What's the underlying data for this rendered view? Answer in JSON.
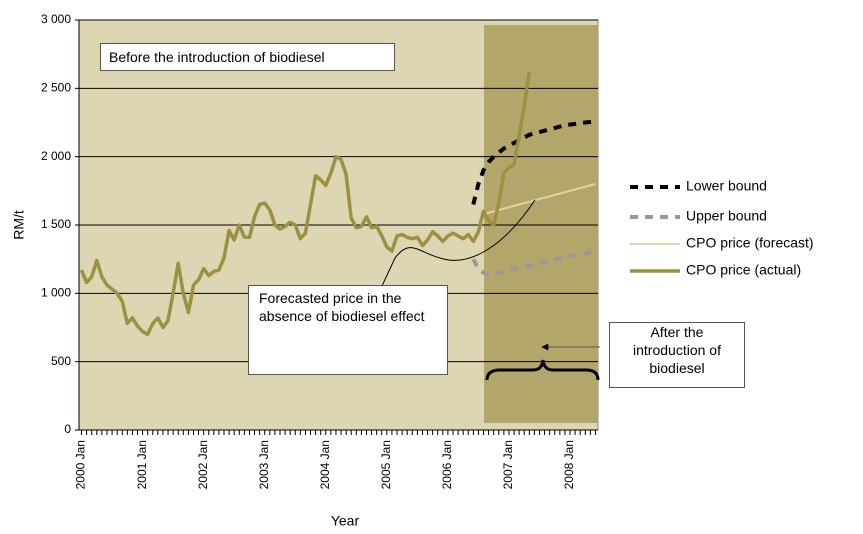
{
  "chart_data": {
    "type": "line",
    "xlabel": "Year",
    "ylabel": "RM/t",
    "grid": true,
    "legend": "right",
    "annotations": [
      "Before the introduction of biodiesel",
      "Forecasted price in the absence of biodiesel effect",
      "After the introduction of biodiesel"
    ],
    "categories": [
      "2000 Jan",
      null,
      null,
      null,
      null,
      null,
      null,
      null,
      null,
      null,
      null,
      null,
      "2001 Jan",
      null,
      null,
      null,
      null,
      null,
      null,
      null,
      null,
      null,
      null,
      null,
      "2002 Jan",
      null,
      null,
      null,
      null,
      null,
      null,
      null,
      null,
      null,
      null,
      null,
      "2003 Jan",
      null,
      null,
      null,
      null,
      null,
      null,
      null,
      null,
      null,
      null,
      null,
      "2004 Jan",
      null,
      null,
      null,
      null,
      null,
      null,
      null,
      null,
      null,
      null,
      null,
      "2005 Jan",
      null,
      null,
      null,
      null,
      null,
      null,
      null,
      null,
      null,
      null,
      null,
      "2006 Jan",
      null,
      null,
      null,
      null,
      null,
      null,
      null,
      null,
      null,
      null,
      null,
      "2007 Jan",
      null,
      null,
      null,
      null,
      null,
      null,
      null,
      null,
      null,
      null,
      null,
      "2008 Jan",
      null,
      null,
      null,
      null,
      null
    ],
    "ylim": [
      0,
      3000
    ],
    "yticks": [
      0,
      500,
      {
        "value": 1000,
        "label": "1 000"
      },
      {
        "value": 1500,
        "label": "1 500"
      },
      {
        "value": 2000,
        "label": "2 000"
      },
      {
        "value": 2500,
        "label": "2 500"
      },
      {
        "value": 3000,
        "label": "3 000"
      }
    ],
    "series": [
      {
        "name": "Lower bound",
        "color": "#000000",
        "dashed": true,
        "width": 4,
        "values": [
          null,
          null,
          null,
          null,
          null,
          null,
          null,
          null,
          null,
          null,
          null,
          null,
          null,
          null,
          null,
          null,
          null,
          null,
          null,
          null,
          null,
          null,
          null,
          null,
          null,
          null,
          null,
          null,
          null,
          null,
          null,
          null,
          null,
          null,
          null,
          null,
          null,
          null,
          null,
          null,
          null,
          null,
          null,
          null,
          null,
          null,
          null,
          null,
          null,
          null,
          null,
          null,
          null,
          null,
          null,
          null,
          null,
          null,
          null,
          null,
          null,
          null,
          null,
          null,
          null,
          null,
          null,
          null,
          null,
          null,
          null,
          null,
          null,
          null,
          null,
          null,
          null,
          1650,
          1800,
          1900,
          1960,
          2000,
          2030,
          2060,
          2080,
          2100,
          2120,
          2140,
          2160,
          2170,
          2180,
          2190,
          2200,
          2210,
          2220,
          2230,
          2235,
          2240,
          2245,
          2250,
          2255,
          2260
        ]
      },
      {
        "name": "Upper bound",
        "color": "#999999",
        "dashed": true,
        "width": 4,
        "values": [
          null,
          null,
          null,
          null,
          null,
          null,
          null,
          null,
          null,
          null,
          null,
          null,
          null,
          null,
          null,
          null,
          null,
          null,
          null,
          null,
          null,
          null,
          null,
          null,
          null,
          null,
          null,
          null,
          null,
          null,
          null,
          null,
          null,
          null,
          null,
          null,
          null,
          null,
          null,
          null,
          null,
          null,
          null,
          null,
          null,
          null,
          null,
          null,
          null,
          null,
          null,
          null,
          null,
          null,
          null,
          null,
          null,
          null,
          null,
          null,
          null,
          null,
          null,
          null,
          null,
          null,
          null,
          null,
          null,
          null,
          null,
          null,
          null,
          null,
          null,
          null,
          null,
          1250,
          1180,
          1150,
          1140,
          1140,
          1150,
          1160,
          1170,
          1180,
          1190,
          1200,
          1205,
          1210,
          1220,
          1230,
          1240,
          1250,
          1255,
          1260,
          1270,
          1280,
          1285,
          1290,
          1300,
          1310
        ]
      },
      {
        "name": "CPO price (forecast)",
        "color": "#dcd6a4",
        "dashed": false,
        "width": 2,
        "values": [
          null,
          null,
          null,
          null,
          null,
          null,
          null,
          null,
          null,
          null,
          null,
          null,
          null,
          null,
          null,
          null,
          null,
          null,
          null,
          null,
          null,
          null,
          null,
          null,
          null,
          null,
          null,
          null,
          null,
          null,
          null,
          null,
          null,
          null,
          null,
          null,
          null,
          null,
          null,
          null,
          null,
          null,
          null,
          null,
          null,
          null,
          null,
          null,
          null,
          null,
          null,
          null,
          null,
          null,
          null,
          null,
          null,
          null,
          null,
          null,
          null,
          null,
          null,
          null,
          null,
          null,
          null,
          null,
          null,
          null,
          null,
          null,
          null,
          null,
          null,
          null,
          null,
          null,
          1560,
          1575,
          1590,
          1600,
          1610,
          1620,
          1630,
          1640,
          1650,
          1660,
          1670,
          1680,
          1690,
          1700,
          1710,
          1720,
          1730,
          1740,
          1750,
          1760,
          1770,
          1780,
          1790,
          1800
        ]
      },
      {
        "name": "CPO price (actual)",
        "color": "#9c9142",
        "dashed": false,
        "width": 3.5,
        "values": [
          1170,
          1080,
          1120,
          1240,
          1120,
          1060,
          1030,
          1000,
          940,
          780,
          820,
          760,
          720,
          700,
          780,
          820,
          750,
          800,
          1000,
          1220,
          1000,
          860,
          1060,
          1100,
          1180,
          1130,
          1160,
          1170,
          1260,
          1460,
          1390,
          1500,
          1410,
          1410,
          1560,
          1650,
          1660,
          1610,
          1500,
          1470,
          1490,
          1520,
          1500,
          1400,
          1440,
          1650,
          1860,
          1830,
          1790,
          1880,
          2000,
          1980,
          1870,
          1550,
          1480,
          1490,
          1560,
          1480,
          1490,
          1420,
          1340,
          1310,
          1420,
          1430,
          1410,
          1400,
          1410,
          1350,
          1390,
          1450,
          1420,
          1380,
          1420,
          1440,
          1420,
          1400,
          1430,
          1380,
          1450,
          1600,
          1530,
          1500,
          1660,
          1880,
          1920,
          1940,
          2150,
          2370,
          2620,
          null,
          null,
          null,
          null,
          null,
          null,
          null,
          null,
          null,
          null,
          null,
          null,
          null
        ]
      }
    ]
  }
}
